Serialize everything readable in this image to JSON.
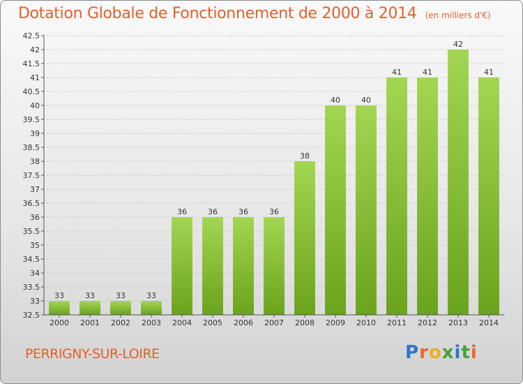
{
  "title": "Dotation Globale de Fonctionnement de 2000 à 2014",
  "subtitle": "(en milliers d'€)",
  "commune": "PERRIGNY-SUR-LOIRE",
  "logo": {
    "letters": [
      "P",
      "r",
      "o",
      "x",
      "i",
      "t",
      "i"
    ],
    "colors": [
      "#2e75c9",
      "#e8692a",
      "#e8b020",
      "#44a336",
      "#2e75c9",
      "#44a336",
      "#e8692a"
    ]
  },
  "colors": {
    "title": "#e35f2c",
    "bar_light": "#a3d652",
    "bar_dark": "#6aa31c",
    "grid": "#c8c8c8"
  },
  "chart_data": {
    "type": "bar",
    "categories": [
      "2000",
      "2001",
      "2002",
      "2003",
      "2004",
      "2005",
      "2006",
      "2007",
      "2008",
      "2009",
      "2010",
      "2011",
      "2012",
      "2013",
      "2014"
    ],
    "values": [
      33,
      33,
      33,
      33,
      36,
      36,
      36,
      36,
      38,
      40,
      40,
      41,
      41,
      42,
      41
    ],
    "ylim": [
      32.5,
      42.5
    ],
    "yticks": [
      "32.5",
      "33",
      "33.5",
      "34",
      "34.5",
      "35",
      "35.5",
      "36",
      "36.5",
      "37",
      "37.5",
      "38",
      "38.5",
      "39",
      "39.5",
      "40",
      "40.5",
      "41",
      "41.5",
      "42",
      "42.5"
    ],
    "grid": true,
    "data_labels": true
  }
}
